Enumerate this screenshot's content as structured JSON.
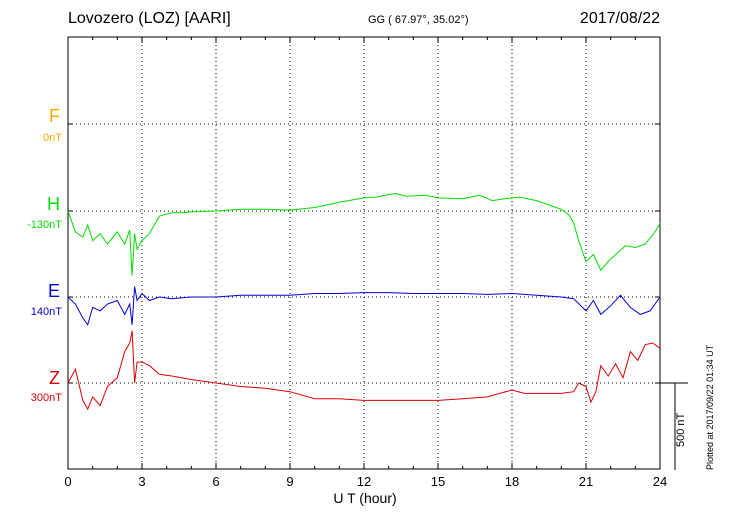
{
  "header": {
    "title": "Lovozero (LOZ)  [AARI]",
    "coords": "GG ( 67.97°,  35.02°)",
    "date": "2017/08/22"
  },
  "components": [
    {
      "name": "F",
      "baseline": "0nT",
      "color": "#ffa500"
    },
    {
      "name": "H",
      "baseline": "-130nT",
      "color": "#00dd00"
    },
    {
      "name": "E",
      "baseline": "140nT",
      "color": "#0000dd"
    },
    {
      "name": "Z",
      "baseline": "300nT",
      "color": "#dd0000"
    }
  ],
  "xaxis": {
    "label": "U T (hour)",
    "ticks": [
      "0",
      "3",
      "6",
      "9",
      "12",
      "15",
      "18",
      "21",
      "24"
    ]
  },
  "scale_label": "500 nT",
  "plotted": "Plotted at 2017/09/22 01:34 UT",
  "chart_data": {
    "type": "line",
    "xlabel": "U T (hour)",
    "xlim": [
      0,
      24
    ],
    "grid": true,
    "series": [
      {
        "name": "H",
        "color": "#00dd00",
        "x": [
          0,
          0.3,
          0.6,
          0.8,
          1.0,
          1.3,
          1.6,
          2.0,
          2.3,
          2.5,
          2.6,
          2.7,
          2.8,
          3.0,
          3.3,
          3.7,
          4.2,
          4.6,
          5.0,
          6.0,
          7.0,
          8.0,
          9.0,
          10.0,
          11.0,
          12.0,
          12.5,
          13.0,
          13.3,
          13.7,
          14.5,
          15.0,
          16.0,
          16.7,
          17.2,
          17.7,
          18.3,
          19.0,
          20.0,
          20.3,
          20.5,
          20.7,
          21.0,
          21.3,
          21.6,
          21.9,
          22.2,
          22.6,
          23.0,
          23.4,
          23.8,
          24.0
        ],
        "values": [
          -130,
          -250,
          -280,
          -210,
          -300,
          -260,
          -320,
          -250,
          -320,
          -240,
          -500,
          -260,
          -350,
          -300,
          -260,
          -160,
          -140,
          -140,
          -135,
          -130,
          -120,
          -120,
          -125,
          -110,
          -80,
          -55,
          -50,
          -35,
          -30,
          -45,
          -40,
          -55,
          -60,
          -40,
          -70,
          -60,
          -50,
          -70,
          -120,
          -150,
          -200,
          -300,
          -420,
          -380,
          -470,
          -420,
          -380,
          -330,
          -340,
          -320,
          -250,
          -200
        ]
      },
      {
        "name": "E",
        "color": "#0000dd",
        "x": [
          0,
          0.3,
          0.6,
          0.8,
          1.0,
          1.3,
          1.6,
          2.0,
          2.3,
          2.5,
          2.6,
          2.7,
          2.8,
          3.0,
          3.3,
          3.7,
          4.2,
          5.0,
          6.0,
          7.0,
          8.0,
          9.0,
          10.0,
          11.0,
          12.0,
          13.0,
          14.0,
          15.0,
          16.0,
          17.0,
          18.0,
          19.0,
          20.0,
          20.5,
          21.0,
          21.3,
          21.6,
          22.0,
          22.4,
          22.8,
          23.2,
          23.6,
          24.0
        ],
        "values": [
          140,
          100,
          20,
          -20,
          80,
          60,
          100,
          120,
          40,
          100,
          -20,
          200,
          120,
          160,
          120,
          140,
          130,
          140,
          140,
          150,
          150,
          150,
          160,
          160,
          165,
          165,
          160,
          160,
          160,
          155,
          160,
          150,
          140,
          130,
          60,
          120,
          40,
          90,
          150,
          80,
          40,
          60,
          140
        ]
      },
      {
        "name": "Z",
        "color": "#dd0000",
        "x": [
          0,
          0.3,
          0.6,
          0.8,
          1.0,
          1.3,
          1.6,
          2.0,
          2.3,
          2.5,
          2.6,
          2.7,
          2.8,
          3.0,
          3.3,
          3.7,
          4.2,
          5.0,
          6.0,
          7.0,
          8.0,
          9.0,
          10.0,
          11.0,
          12.0,
          13.0,
          14.0,
          15.0,
          16.0,
          17.0,
          17.5,
          18.0,
          18.5,
          19.0,
          20.0,
          20.5,
          20.7,
          21.0,
          21.2,
          21.4,
          21.6,
          21.9,
          22.2,
          22.5,
          22.8,
          23.1,
          23.4,
          23.7,
          24.0
        ],
        "values": [
          300,
          380,
          200,
          150,
          220,
          170,
          280,
          330,
          480,
          530,
          600,
          300,
          420,
          420,
          400,
          350,
          340,
          320,
          300,
          280,
          270,
          250,
          210,
          210,
          200,
          200,
          200,
          200,
          210,
          220,
          240,
          260,
          240,
          240,
          240,
          250,
          300,
          280,
          190,
          250,
          400,
          340,
          410,
          330,
          480,
          430,
          520,
          530,
          500
        ]
      }
    ]
  }
}
